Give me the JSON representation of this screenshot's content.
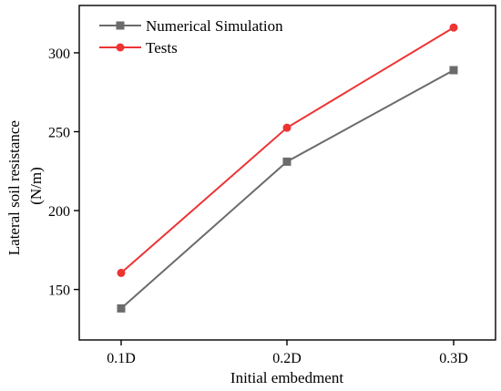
{
  "chart_data": {
    "type": "line",
    "categories": [
      "0.1D",
      "0.2D",
      "0.3D"
    ],
    "series": [
      {
        "name": "Numerical Simulation",
        "values": [
          138,
          231,
          289
        ],
        "color": "#6b6b6b",
        "marker": "square"
      },
      {
        "name": "Tests",
        "values": [
          160.5,
          252.5,
          316
        ],
        "color": "#ee3333",
        "marker": "circle"
      }
    ],
    "xlabel": "Initial embedment",
    "ylabel_lines": [
      "Lateral soil resistance",
      "(N/m)"
    ],
    "ylim": [
      118,
      330
    ],
    "yticks": [
      150,
      200,
      250,
      300
    ],
    "legend_position": "top-left",
    "grid": false
  }
}
